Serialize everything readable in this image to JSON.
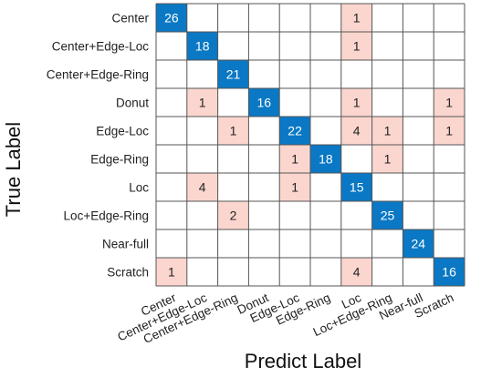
{
  "chart_data": {
    "type": "heatmap",
    "xlabel": "Predict Label",
    "ylabel": "True Label",
    "x_categories": [
      "Center",
      "Center+Edge-Loc",
      "Center+Edge-Ring",
      "Donut",
      "Edge-Loc",
      "Edge-Ring",
      "Loc",
      "Loc+Edge-Ring",
      "Near-full",
      "Scratch"
    ],
    "y_categories": [
      "Center",
      "Center+Edge-Loc",
      "Center+Edge-Ring",
      "Donut",
      "Edge-Loc",
      "Edge-Ring",
      "Loc",
      "Loc+Edge-Ring",
      "Near-full",
      "Scratch"
    ],
    "matrix": [
      [
        26,
        0,
        0,
        0,
        0,
        0,
        1,
        0,
        0,
        0
      ],
      [
        0,
        18,
        0,
        0,
        0,
        0,
        1,
        0,
        0,
        0
      ],
      [
        0,
        0,
        21,
        0,
        0,
        0,
        0,
        0,
        0,
        0
      ],
      [
        0,
        1,
        0,
        16,
        0,
        0,
        1,
        0,
        0,
        1
      ],
      [
        0,
        0,
        1,
        0,
        22,
        0,
        4,
        1,
        0,
        1
      ],
      [
        0,
        0,
        0,
        0,
        1,
        18,
        0,
        1,
        0,
        0
      ],
      [
        0,
        4,
        0,
        0,
        1,
        0,
        15,
        0,
        0,
        0
      ],
      [
        0,
        0,
        2,
        0,
        0,
        0,
        0,
        25,
        0,
        0
      ],
      [
        0,
        0,
        0,
        0,
        0,
        0,
        0,
        0,
        24,
        0
      ],
      [
        1,
        0,
        0,
        0,
        0,
        0,
        4,
        0,
        0,
        16
      ]
    ],
    "colors": {
      "diagonal": "#0a78c4",
      "off_diagonal": "#fbd6ce",
      "empty": "#ffffff",
      "grid": "#555555",
      "diagonal_text": "#ffffff",
      "off_diagonal_text": "#222222"
    }
  }
}
